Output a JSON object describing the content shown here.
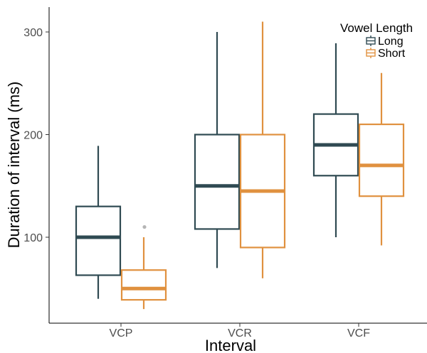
{
  "chart_data": {
    "type": "boxplot",
    "xlabel": "Interval",
    "ylabel": "Duration of interval (ms)",
    "categories": [
      "VCP",
      "VCR",
      "VCF"
    ],
    "ylim": [
      15,
      325
    ],
    "yticks": [
      100,
      200,
      300
    ],
    "grid": false,
    "legend": {
      "title": "Vowel Length",
      "position": "top-right"
    },
    "series": [
      {
        "name": "Long",
        "color": "#2f4a52",
        "boxes": [
          {
            "category": "VCP",
            "whisker_low": 40,
            "q1": 63,
            "median": 100,
            "q3": 130,
            "whisker_high": 189,
            "outliers": []
          },
          {
            "category": "VCR",
            "whisker_low": 70,
            "q1": 108,
            "median": 150,
            "q3": 200,
            "whisker_high": 300,
            "outliers": []
          },
          {
            "category": "VCF",
            "whisker_low": 100,
            "q1": 160,
            "median": 190,
            "q3": 220,
            "whisker_high": 289,
            "outliers": []
          }
        ]
      },
      {
        "name": "Short",
        "color": "#e0913f",
        "boxes": [
          {
            "category": "VCP",
            "whisker_low": 30,
            "q1": 39,
            "median": 50,
            "q3": 68,
            "whisker_high": 100,
            "outliers": [
              110
            ]
          },
          {
            "category": "VCR",
            "whisker_low": 60,
            "q1": 90,
            "median": 145,
            "q3": 200,
            "whisker_high": 310,
            "outliers": []
          },
          {
            "category": "VCF",
            "whisker_low": 92,
            "q1": 140,
            "median": 170,
            "q3": 210,
            "whisker_high": 260,
            "outliers": []
          }
        ]
      }
    ]
  }
}
